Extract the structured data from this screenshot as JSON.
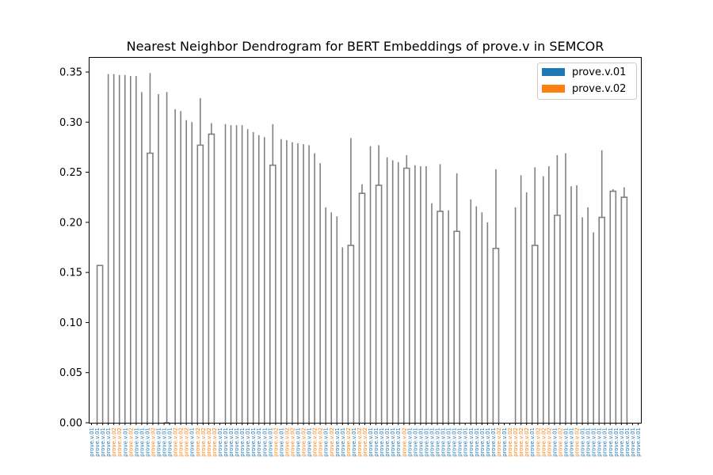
{
  "chart_data": {
    "type": "dendrogram",
    "title": "Nearest Neighbor Dendrogram for BERT Embeddings of prove.v in SEMCOR",
    "xlabel": "",
    "ylabel": "",
    "ylim": [
      0,
      0.365
    ],
    "yticks": [
      0.0,
      0.05,
      0.1,
      0.15,
      0.2,
      0.25,
      0.3,
      0.35
    ],
    "ytick_labels": [
      "0.00",
      "0.05",
      "0.10",
      "0.15",
      "0.20",
      "0.25",
      "0.30",
      "0.35"
    ],
    "grid": false,
    "legend_position": "top-right",
    "link_color": "#808080",
    "legend": [
      {
        "label": "prove.v.01",
        "color": "#1f77b4"
      },
      {
        "label": "prove.v.02",
        "color": "#ff7f0e"
      }
    ],
    "leaves": [
      "prove.v.01",
      "prove.v.01",
      "prove.v.01",
      "prove.v.01",
      "prove.v.02",
      "prove.v.02",
      "prove.v.01",
      "prove.v.02",
      "prove.v.01",
      "prove.v.01",
      "prove.v.01",
      "prove.v.02",
      "prove.v.01",
      "prove.v.01",
      "prove.v.01",
      "prove.v.02",
      "prove.v.02",
      "prove.v.02",
      "prove.v.01",
      "prove.v.02",
      "prove.v.02",
      "prove.v.02",
      "prove.v.02",
      "prove.v.01",
      "prove.v.01",
      "prove.v.01",
      "prove.v.01",
      "prove.v.01",
      "prove.v.01",
      "prove.v.01",
      "prove.v.01",
      "prove.v.01",
      "prove.v.01",
      "prove.v.02",
      "prove.v.01",
      "prove.v.02",
      "prove.v.02",
      "prove.v.01",
      "prove.v.02",
      "prove.v.01",
      "prove.v.02",
      "prove.v.02",
      "prove.v.01",
      "prove.v.02",
      "prove.v.01",
      "prove.v.01",
      "prove.v.02",
      "prove.v.01",
      "prove.v.02",
      "prove.v.02",
      "prove.v.01",
      "prove.v.01",
      "prove.v.01",
      "prove.v.01",
      "prove.v.01",
      "prove.v.01",
      "prove.v.02",
      "prove.v.01",
      "prove.v.01",
      "prove.v.01",
      "prove.v.01",
      "prove.v.01",
      "prove.v.01",
      "prove.v.01",
      "prove.v.01",
      "prove.v.01",
      "prove.v.01",
      "prove.v.01",
      "prove.v.01",
      "prove.v.01",
      "prove.v.01",
      "prove.v.01",
      "prove.v.01",
      "prove.v.02",
      "prove.v.01",
      "prove.v.02",
      "prove.v.02",
      "prove.v.02",
      "prove.v.02",
      "prove.v.01",
      "prove.v.02",
      "prove.v.02",
      "prove.v.02",
      "prove.v.01",
      "prove.v.02",
      "prove.v.01",
      "prove.v.01",
      "prove.v.02",
      "prove.v.01",
      "prove.v.01",
      "prove.v.01",
      "prove.v.01",
      "prove.v.01",
      "prove.v.01",
      "prove.v.01",
      "prove.v.01",
      "prove.v.01",
      "prove.v.01",
      "prove.v.01"
    ],
    "merges": [
      [
        1,
        2,
        0.157
      ],
      [
        10,
        11,
        0.269
      ],
      [
        13,
        14,
        0.0
      ],
      [
        19,
        20,
        0.277
      ],
      [
        21,
        22,
        0.288
      ],
      [
        32,
        33,
        0.257
      ],
      [
        46,
        47,
        0.177
      ],
      [
        45,
        106,
        0.175
      ],
      [
        44,
        107,
        0.206
      ],
      [
        43,
        108,
        0.21
      ],
      [
        42,
        109,
        0.215
      ],
      [
        48,
        49,
        0.229
      ],
      [
        110,
        111,
        0.238
      ],
      [
        41,
        112,
        0.259
      ],
      [
        40,
        113,
        0.269
      ],
      [
        51,
        52,
        0.237
      ],
      [
        56,
        57,
        0.254
      ],
      [
        62,
        63,
        0.211
      ],
      [
        61,
        117,
        0.219
      ],
      [
        65,
        66,
        0.191
      ],
      [
        64,
        119,
        0.212
      ],
      [
        120,
        67,
        0.221
      ],
      [
        118,
        121,
        0.249
      ],
      [
        72,
        73,
        0.174
      ],
      [
        71,
        123,
        0.2
      ],
      [
        70,
        124,
        0.21
      ],
      [
        69,
        125,
        0.216
      ],
      [
        68,
        126,
        0.223
      ],
      [
        127,
        74,
        0.192
      ],
      [
        128,
        75,
        0.238
      ],
      [
        122,
        129,
        0.253
      ],
      [
        79,
        80,
        0.177
      ],
      [
        78,
        131,
        0.23
      ],
      [
        77,
        132,
        0.247
      ],
      [
        76,
        133,
        0.215
      ],
      [
        83,
        84,
        0.207
      ],
      [
        82,
        135,
        0.256
      ],
      [
        81,
        136,
        0.246
      ],
      [
        134,
        137,
        0.267
      ],
      [
        91,
        92,
        0.205
      ],
      [
        90,
        139,
        0.19
      ],
      [
        89,
        140,
        0.215
      ],
      [
        88,
        141,
        0.205
      ],
      [
        87,
        142,
        0.237
      ],
      [
        86,
        143,
        0.236
      ],
      [
        93,
        94,
        0.231
      ],
      [
        144,
        145,
        0.233
      ],
      [
        95,
        96,
        0.225
      ],
      [
        146,
        147,
        0.235
      ],
      [
        85,
        148,
        0.269
      ],
      [
        138,
        149,
        0.272
      ],
      [
        130,
        150,
        0.255
      ],
      [
        60,
        151,
        0.256
      ],
      [
        59,
        152,
        0.256
      ],
      [
        58,
        153,
        0.257
      ],
      [
        116,
        154,
        0.258
      ],
      [
        55,
        155,
        0.26
      ],
      [
        54,
        156,
        0.262
      ],
      [
        53,
        157,
        0.265
      ],
      [
        115,
        158,
        0.267
      ],
      [
        50,
        159,
        0.276
      ],
      [
        114,
        160,
        0.277
      ],
      [
        39,
        161,
        0.277
      ],
      [
        38,
        162,
        0.278
      ],
      [
        37,
        163,
        0.279
      ],
      [
        36,
        164,
        0.28
      ],
      [
        35,
        165,
        0.282
      ],
      [
        34,
        166,
        0.283
      ],
      [
        105,
        167,
        0.284
      ],
      [
        31,
        168,
        0.285
      ],
      [
        30,
        169,
        0.287
      ],
      [
        29,
        170,
        0.29
      ],
      [
        28,
        171,
        0.293
      ],
      [
        27,
        172,
        0.297
      ],
      [
        26,
        173,
        0.297
      ],
      [
        25,
        174,
        0.297
      ],
      [
        24,
        175,
        0.298
      ],
      [
        104,
        176,
        0.298
      ],
      [
        103,
        177,
        0.299
      ],
      [
        18,
        178,
        0.3
      ],
      [
        17,
        179,
        0.302
      ],
      [
        16,
        180,
        0.311
      ],
      [
        15,
        181,
        0.313
      ],
      [
        102,
        182,
        0.324
      ],
      [
        12,
        183,
        0.328
      ],
      [
        101,
        184,
        0.33
      ],
      [
        9,
        185,
        0.33
      ],
      [
        8,
        186,
        0.346
      ],
      [
        7,
        187,
        0.346
      ],
      [
        6,
        188,
        0.347
      ],
      [
        5,
        189,
        0.347
      ],
      [
        4,
        190,
        0.348
      ],
      [
        3,
        191,
        0.348
      ],
      [
        100,
        192,
        0.349
      ]
    ]
  }
}
